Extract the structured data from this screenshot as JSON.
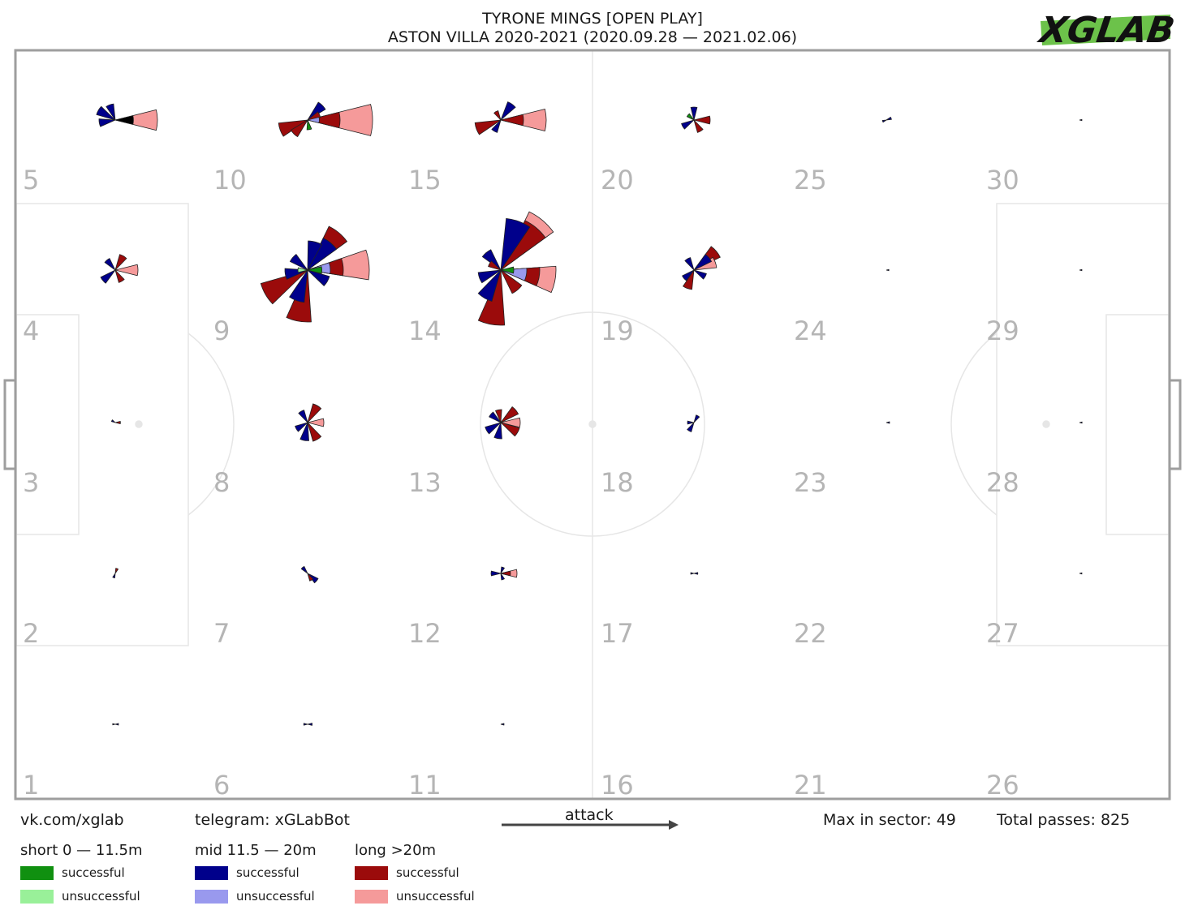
{
  "header": {
    "title_line1": "TYRONE MINGS [OPEN PLAY]",
    "title_line2": "ASTON VILLA 2020-2021 (2020.09.28 — 2021.02.06)",
    "logo_text": "XGLAB",
    "logo_color": "#6cc24a"
  },
  "footer": {
    "vk": "vk.com/xglab",
    "telegram": "telegram: xGLabBot",
    "attack_label": "attack",
    "max_in_sector": "Max in sector: 49",
    "total_passes": "Total passes: 825"
  },
  "legend": {
    "short": {
      "label": "short 0 — 11.5m",
      "successful": "successful",
      "unsuccessful": "unsuccessful",
      "success_color": "#109010",
      "fail_color": "#99f099"
    },
    "mid": {
      "label": "mid 11.5 — 20m",
      "successful": "successful",
      "unsuccessful": "unsuccessful",
      "success_color": "#00008b",
      "fail_color": "#9999ee"
    },
    "long": {
      "label": "long >20m",
      "successful": "successful",
      "unsuccessful": "unsuccessful",
      "success_color": "#9b0b0b",
      "fail_color": "#f59a9a"
    }
  },
  "chart_data": {
    "type": "pass-rose-sectors",
    "sector_numbers": [
      "1",
      "2",
      "3",
      "4",
      "5",
      "6",
      "7",
      "8",
      "9",
      "10",
      "11",
      "12",
      "13",
      "14",
      "15",
      "16",
      "17",
      "18",
      "19",
      "20",
      "21",
      "22",
      "23",
      "24",
      "25",
      "26",
      "27",
      "28",
      "29",
      "30"
    ],
    "max_in_sector": 49,
    "total_passes": 825,
    "direction": "attack left to right",
    "roses": [
      {
        "sector": 5,
        "petals": [
          {
            "dir": 0,
            "len": 0.65,
            "color": "lf"
          },
          {
            "dir": 0,
            "len": 0.28,
            "color": "lm"
          },
          {
            "dir": -150,
            "len": 0.3,
            "color": "ms"
          },
          {
            "dir": -110,
            "len": 0.25,
            "color": "ms"
          },
          {
            "dir": 170,
            "len": 0.25,
            "color": "ms"
          }
        ]
      },
      {
        "sector": 10,
        "petals": [
          {
            "dir": 0,
            "len": 1.0,
            "color": "lf"
          },
          {
            "dir": 0,
            "len": 0.5,
            "color": "ls"
          },
          {
            "dir": -45,
            "len": 0.32,
            "color": "ms"
          },
          {
            "dir": -25,
            "len": 0.2,
            "color": "ls"
          },
          {
            "dir": 160,
            "len": 0.45,
            "color": "ls"
          },
          {
            "dir": 135,
            "len": 0.3,
            "color": "ls"
          },
          {
            "dir": 0,
            "len": 0.18,
            "color": "mf"
          },
          {
            "dir": 80,
            "len": 0.15,
            "color": "ss"
          }
        ]
      },
      {
        "sector": 15,
        "petals": [
          {
            "dir": 0,
            "len": 0.7,
            "color": "lf"
          },
          {
            "dir": 0,
            "len": 0.35,
            "color": "ls"
          },
          {
            "dir": -55,
            "len": 0.3,
            "color": "ms"
          },
          {
            "dir": 160,
            "len": 0.4,
            "color": "ls"
          },
          {
            "dir": 120,
            "len": 0.2,
            "color": "ms"
          },
          {
            "dir": -120,
            "len": 0.15,
            "color": "ls"
          }
        ]
      },
      {
        "sector": 20,
        "petals": [
          {
            "dir": 0,
            "len": 0.25,
            "color": "ls"
          },
          {
            "dir": -90,
            "len": 0.2,
            "color": "ms"
          },
          {
            "dir": 150,
            "len": 0.2,
            "color": "ms"
          },
          {
            "dir": 60,
            "len": 0.2,
            "color": "ls"
          },
          {
            "dir": -140,
            "len": 0.12,
            "color": "ss"
          }
        ]
      },
      {
        "sector": 25,
        "petals": [
          {
            "dir": -20,
            "len": 0.08,
            "color": "ms"
          },
          {
            "dir": 160,
            "len": 0.06,
            "color": "ms"
          }
        ]
      },
      {
        "sector": 30,
        "petals": [
          {
            "dir": 0,
            "len": 0.03,
            "color": "ms"
          }
        ]
      },
      {
        "sector": 4,
        "petals": [
          {
            "dir": 0,
            "len": 0.35,
            "color": "lf"
          },
          {
            "dir": -60,
            "len": 0.25,
            "color": "ls"
          },
          {
            "dir": 140,
            "len": 0.25,
            "color": "ms"
          },
          {
            "dir": -130,
            "len": 0.2,
            "color": "ms"
          },
          {
            "dir": 60,
            "len": 0.2,
            "color": "ls"
          }
        ]
      },
      {
        "sector": 9,
        "petals": [
          {
            "dir": -5,
            "len": 0.95,
            "color": "lf"
          },
          {
            "dir": -5,
            "len": 0.55,
            "color": "ls"
          },
          {
            "dir": -5,
            "len": 0.35,
            "color": "mf"
          },
          {
            "dir": -50,
            "len": 0.75,
            "color": "ls"
          },
          {
            "dir": -50,
            "len": 0.55,
            "color": "ms"
          },
          {
            "dir": -75,
            "len": 0.45,
            "color": "ms"
          },
          {
            "dir": 150,
            "len": 0.75,
            "color": "ls"
          },
          {
            "dir": 100,
            "len": 0.8,
            "color": "ls"
          },
          {
            "dir": 110,
            "len": 0.5,
            "color": "ms"
          },
          {
            "dir": -140,
            "len": 0.3,
            "color": "ms"
          },
          {
            "dir": 170,
            "len": 0.35,
            "color": "ms"
          },
          {
            "dir": 30,
            "len": 0.35,
            "color": "ms"
          },
          {
            "dir": 0,
            "len": 0.22,
            "color": "ss"
          },
          {
            "dir": 180,
            "len": 0.15,
            "color": "sf"
          }
        ]
      },
      {
        "sector": 14,
        "petals": [
          {
            "dir": -50,
            "len": 1.0,
            "color": "lf"
          },
          {
            "dir": -50,
            "len": 0.85,
            "color": "ls"
          },
          {
            "dir": -70,
            "len": 0.8,
            "color": "ms"
          },
          {
            "dir": 10,
            "len": 0.85,
            "color": "lf"
          },
          {
            "dir": 10,
            "len": 0.6,
            "color": "ls"
          },
          {
            "dir": 10,
            "len": 0.4,
            "color": "mf"
          },
          {
            "dir": 100,
            "len": 0.85,
            "color": "ls"
          },
          {
            "dir": 120,
            "len": 0.5,
            "color": "ms"
          },
          {
            "dir": 160,
            "len": 0.35,
            "color": "ms"
          },
          {
            "dir": -130,
            "len": 0.35,
            "color": "ms"
          },
          {
            "dir": 50,
            "len": 0.4,
            "color": "ls"
          },
          {
            "dir": 0,
            "len": 0.2,
            "color": "ss"
          },
          {
            "dir": -150,
            "len": 0.2,
            "color": "ls"
          }
        ]
      },
      {
        "sector": 19,
        "petals": [
          {
            "dir": -40,
            "len": 0.45,
            "color": "ls"
          },
          {
            "dir": -40,
            "len": 0.3,
            "color": "ms"
          },
          {
            "dir": -20,
            "len": 0.35,
            "color": "lf"
          },
          {
            "dir": 110,
            "len": 0.3,
            "color": "ls"
          },
          {
            "dir": 140,
            "len": 0.2,
            "color": "ms"
          },
          {
            "dir": 30,
            "len": 0.2,
            "color": "ms"
          },
          {
            "dir": -120,
            "len": 0.2,
            "color": "ms"
          }
        ]
      },
      {
        "sector": 24,
        "petals": [
          {
            "dir": 0,
            "len": 0.04,
            "color": "ms"
          }
        ]
      },
      {
        "sector": 29,
        "petals": [
          {
            "dir": 0,
            "len": 0.03,
            "color": "ms"
          }
        ]
      },
      {
        "sector": 3,
        "petals": [
          {
            "dir": 0,
            "len": 0.08,
            "color": "ls"
          },
          {
            "dir": -150,
            "len": 0.06,
            "color": "ms"
          }
        ]
      },
      {
        "sector": 8,
        "petals": [
          {
            "dir": -60,
            "len": 0.3,
            "color": "ls"
          },
          {
            "dir": 0,
            "len": 0.25,
            "color": "lf"
          },
          {
            "dir": 100,
            "len": 0.28,
            "color": "ms"
          },
          {
            "dir": 60,
            "len": 0.3,
            "color": "ls"
          },
          {
            "dir": 150,
            "len": 0.2,
            "color": "ms"
          },
          {
            "dir": -120,
            "len": 0.2,
            "color": "ms"
          }
        ]
      },
      {
        "sector": 13,
        "petals": [
          {
            "dir": -40,
            "len": 0.3,
            "color": "ls"
          },
          {
            "dir": 0,
            "len": 0.3,
            "color": "lf"
          },
          {
            "dir": 30,
            "len": 0.3,
            "color": "ls"
          },
          {
            "dir": 100,
            "len": 0.25,
            "color": "ms"
          },
          {
            "dir": 150,
            "len": 0.25,
            "color": "ms"
          },
          {
            "dir": -100,
            "len": 0.2,
            "color": "ls"
          },
          {
            "dir": -140,
            "len": 0.2,
            "color": "ms"
          }
        ]
      },
      {
        "sector": 18,
        "petals": [
          {
            "dir": 120,
            "len": 0.15,
            "color": "ms"
          },
          {
            "dir": -60,
            "len": 0.12,
            "color": "ms"
          },
          {
            "dir": 180,
            "len": 0.1,
            "color": "ms"
          }
        ]
      },
      {
        "sector": 23,
        "petals": [
          {
            "dir": 0,
            "len": 0.05,
            "color": "ms"
          }
        ]
      },
      {
        "sector": 28,
        "petals": [
          {
            "dir": 0,
            "len": 0.04,
            "color": "ms"
          }
        ]
      },
      {
        "sector": 2,
        "petals": [
          {
            "dir": -70,
            "len": 0.08,
            "color": "ls"
          },
          {
            "dir": 110,
            "len": 0.07,
            "color": "ms"
          }
        ]
      },
      {
        "sector": 7,
        "petals": [
          {
            "dir": 40,
            "len": 0.18,
            "color": "ms"
          },
          {
            "dir": -130,
            "len": 0.12,
            "color": "ms"
          },
          {
            "dir": 60,
            "len": 0.12,
            "color": "ls"
          }
        ]
      },
      {
        "sector": 12,
        "petals": [
          {
            "dir": 0,
            "len": 0.25,
            "color": "lf"
          },
          {
            "dir": 0,
            "len": 0.15,
            "color": "ls"
          },
          {
            "dir": 180,
            "len": 0.15,
            "color": "ms"
          },
          {
            "dir": -70,
            "len": 0.1,
            "color": "ms"
          },
          {
            "dir": 70,
            "len": 0.1,
            "color": "ms"
          }
        ]
      },
      {
        "sector": 17,
        "petals": [
          {
            "dir": 0,
            "len": 0.06,
            "color": "ms"
          },
          {
            "dir": 180,
            "len": 0.05,
            "color": "ms"
          }
        ]
      },
      {
        "sector": 22,
        "petals": []
      },
      {
        "sector": 27,
        "petals": [
          {
            "dir": 0,
            "len": 0.03,
            "color": "ms"
          }
        ]
      },
      {
        "sector": 1,
        "petals": [
          {
            "dir": 0,
            "len": 0.05,
            "color": "ms"
          },
          {
            "dir": 180,
            "len": 0.04,
            "color": "ms"
          }
        ]
      },
      {
        "sector": 6,
        "petals": [
          {
            "dir": 0,
            "len": 0.07,
            "color": "ms"
          },
          {
            "dir": 180,
            "len": 0.06,
            "color": "ms"
          }
        ]
      },
      {
        "sector": 11,
        "petals": [
          {
            "dir": 0,
            "len": 0.05,
            "color": "ms"
          }
        ]
      },
      {
        "sector": 16,
        "petals": []
      },
      {
        "sector": 21,
        "petals": []
      },
      {
        "sector": 26,
        "petals": []
      }
    ]
  }
}
